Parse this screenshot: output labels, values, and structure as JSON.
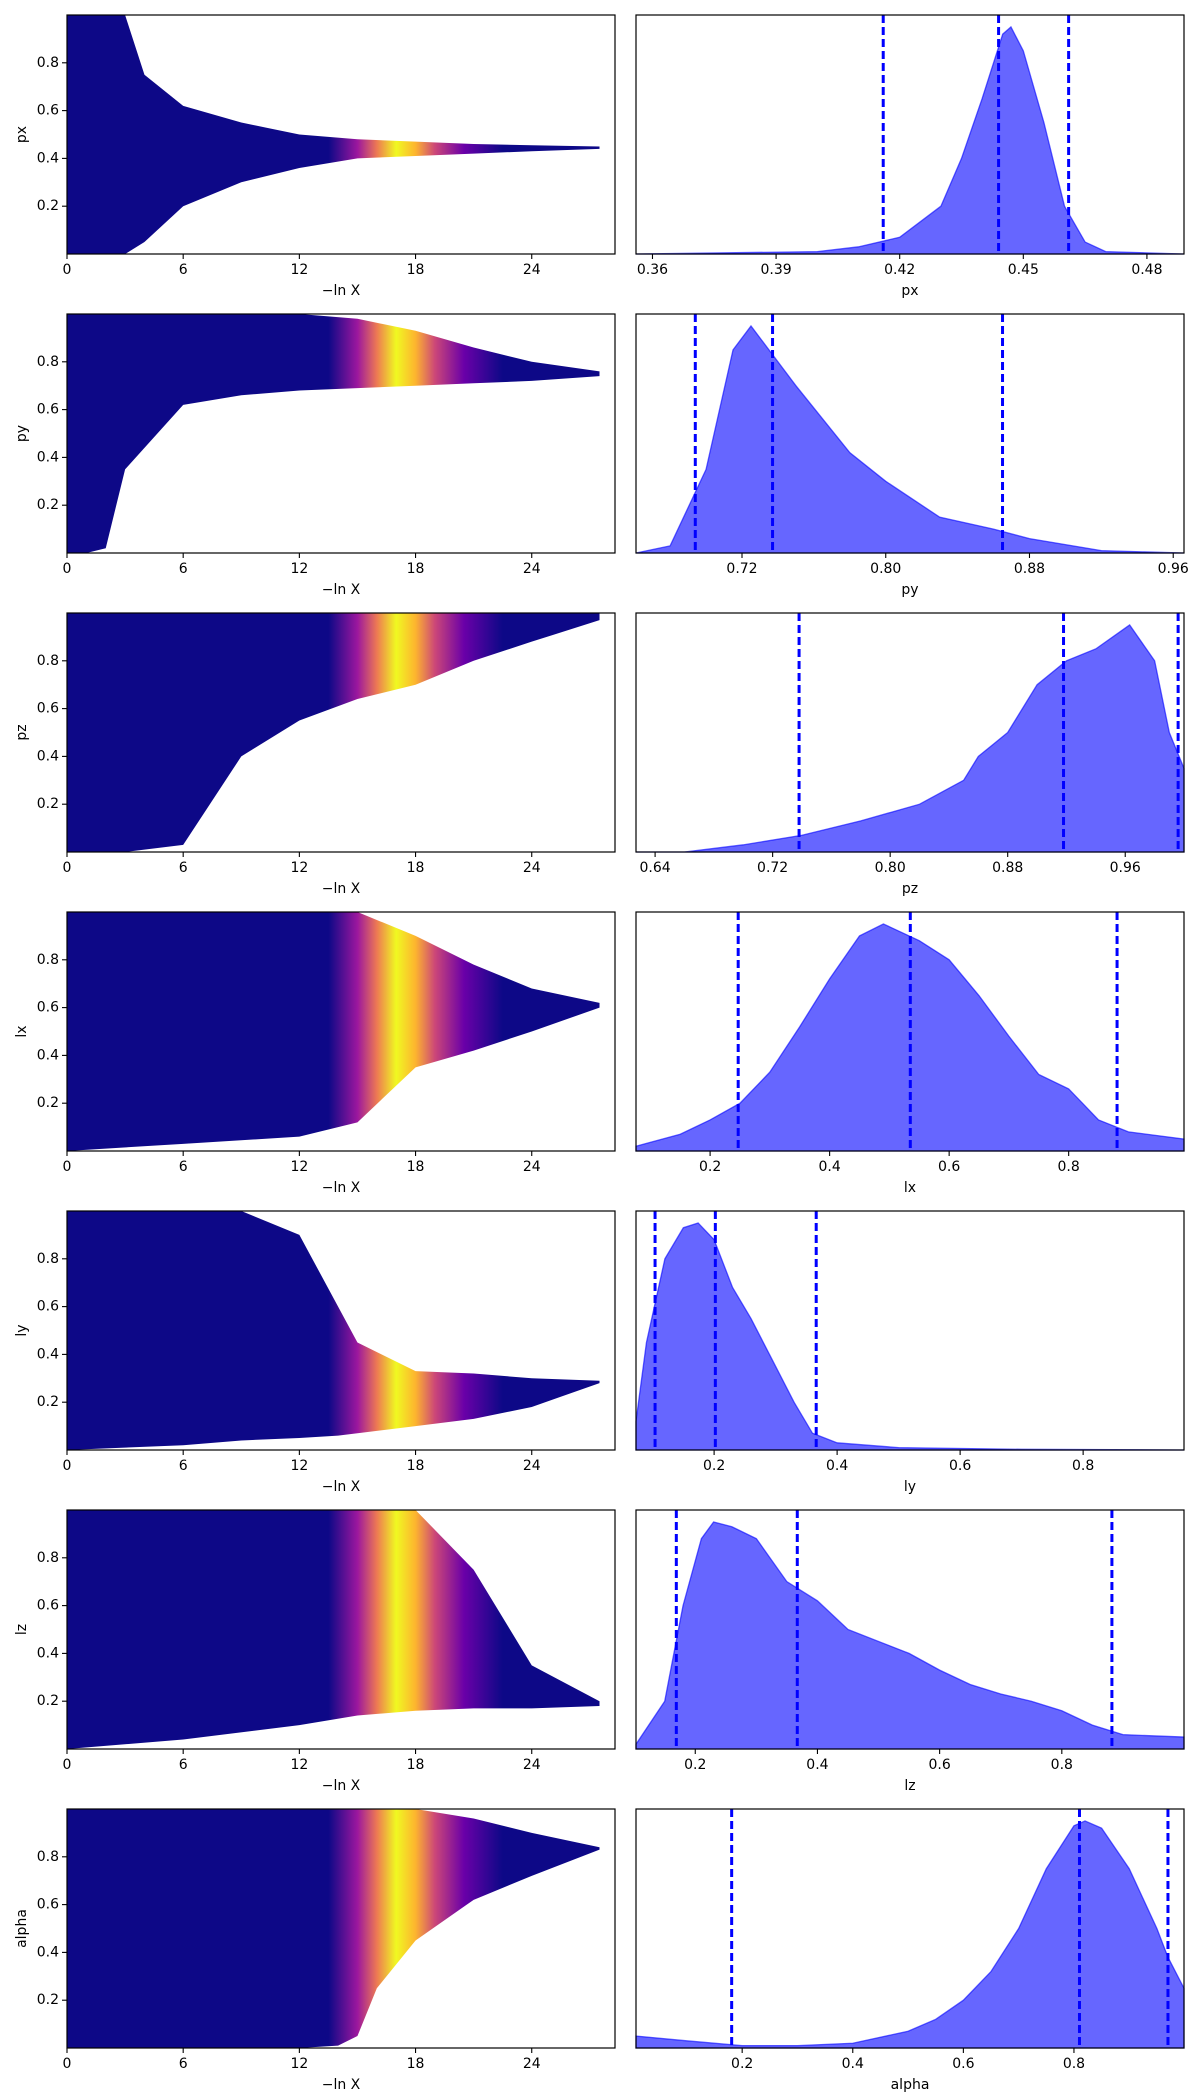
{
  "chart_data": [
    {
      "type": "band",
      "ylabel": "px",
      "xlabel": "−ln X",
      "xlim": [
        0,
        28.3
      ],
      "ylim": [
        0,
        1
      ],
      "xticks": [
        0,
        6,
        12,
        18,
        24
      ],
      "yticks": [
        0.2,
        0.4,
        0.6,
        0.8
      ],
      "x": [
        0,
        3,
        4,
        6,
        9,
        12,
        15,
        18,
        21,
        24,
        27.5
      ],
      "low": [
        0,
        0,
        0.05,
        0.2,
        0.3,
        0.36,
        0.4,
        0.41,
        0.42,
        0.43,
        0.44
      ],
      "high": [
        1,
        1,
        0.75,
        0.62,
        0.55,
        0.5,
        0.48,
        0.47,
        0.46,
        0.455,
        0.45
      ],
      "color_stops": [
        {
          "x": 13.5,
          "color": "#0d0887"
        },
        {
          "x": 15,
          "color": "#9c179e"
        },
        {
          "x": 16,
          "color": "#ed7953"
        },
        {
          "x": 17,
          "color": "#f0f921"
        },
        {
          "x": 18,
          "color": "#fdb42f"
        },
        {
          "x": 19,
          "color": "#cc4778"
        },
        {
          "x": 20.5,
          "color": "#6a00a8"
        },
        {
          "x": 22.5,
          "color": "#0d0887"
        }
      ]
    },
    {
      "type": "kde",
      "xlabel": "px",
      "xlim": [
        0.356,
        0.489
      ],
      "ylim": [
        0,
        1
      ],
      "xticks": [
        0.36,
        0.39,
        0.42,
        0.45,
        0.48
      ],
      "color": "#0000ff",
      "vlines": [
        0.416,
        0.444,
        0.461
      ],
      "x": [
        0.356,
        0.4,
        0.41,
        0.42,
        0.43,
        0.435,
        0.44,
        0.445,
        0.447,
        0.45,
        0.455,
        0.46,
        0.465,
        0.47,
        0.489
      ],
      "values": [
        0,
        0.01,
        0.03,
        0.07,
        0.2,
        0.4,
        0.65,
        0.92,
        0.95,
        0.85,
        0.55,
        0.2,
        0.05,
        0.01,
        0
      ]
    },
    {
      "type": "band",
      "ylabel": "py",
      "xlabel": "−ln X",
      "xlim": [
        0,
        28.3
      ],
      "ylim": [
        0,
        1
      ],
      "xticks": [
        0,
        6,
        12,
        18,
        24
      ],
      "yticks": [
        0.2,
        0.4,
        0.6,
        0.8
      ],
      "x": [
        0,
        1,
        2,
        3,
        6,
        9,
        12,
        15,
        18,
        21,
        24,
        27.5
      ],
      "low": [
        0,
        0,
        0.02,
        0.35,
        0.62,
        0.66,
        0.68,
        0.69,
        0.7,
        0.71,
        0.72,
        0.74
      ],
      "high": [
        1,
        1,
        1,
        1,
        1,
        1,
        1,
        0.98,
        0.93,
        0.86,
        0.8,
        0.76
      ],
      "color_stops": [
        {
          "x": 13.5,
          "color": "#0d0887"
        },
        {
          "x": 15,
          "color": "#9c179e"
        },
        {
          "x": 16,
          "color": "#ed7953"
        },
        {
          "x": 17,
          "color": "#f0f921"
        },
        {
          "x": 18,
          "color": "#fdb42f"
        },
        {
          "x": 19,
          "color": "#cc4778"
        },
        {
          "x": 20.5,
          "color": "#6a00a8"
        },
        {
          "x": 22.5,
          "color": "#0d0887"
        }
      ]
    },
    {
      "type": "kde",
      "xlabel": "py",
      "xlim": [
        0.661,
        0.966
      ],
      "ylim": [
        0,
        1
      ],
      "xticks": [
        0.72,
        {
          "value": 0.8,
          "label": "0.80"
        },
        0.88,
        0.96
      ],
      "color": "#0000ff",
      "vlines": [
        0.694,
        0.737,
        0.865
      ],
      "x": [
        0.661,
        0.68,
        0.7,
        0.715,
        0.725,
        0.75,
        0.78,
        0.8,
        0.83,
        0.86,
        0.88,
        0.92,
        0.966
      ],
      "values": [
        0,
        0.03,
        0.35,
        0.85,
        0.95,
        0.7,
        0.42,
        0.3,
        0.15,
        0.1,
        0.06,
        0.01,
        0
      ]
    },
    {
      "type": "band",
      "ylabel": "pz",
      "xlabel": "−ln X",
      "xlim": [
        0,
        28.3
      ],
      "ylim": [
        0,
        1
      ],
      "xticks": [
        0,
        6,
        12,
        18,
        24
      ],
      "yticks": [
        0.2,
        0.4,
        0.6,
        0.8
      ],
      "x": [
        0,
        3,
        6,
        9,
        12,
        15,
        18,
        21,
        24,
        27.5
      ],
      "low": [
        0,
        0,
        0.03,
        0.4,
        0.55,
        0.64,
        0.7,
        0.8,
        0.88,
        0.97
      ],
      "high": [
        1,
        1,
        1,
        1,
        1,
        1,
        1,
        1,
        1,
        1
      ],
      "color_stops": [
        {
          "x": 13.5,
          "color": "#0d0887"
        },
        {
          "x": 15,
          "color": "#9c179e"
        },
        {
          "x": 16,
          "color": "#ed7953"
        },
        {
          "x": 17,
          "color": "#f0f921"
        },
        {
          "x": 18,
          "color": "#fdb42f"
        },
        {
          "x": 19,
          "color": "#cc4778"
        },
        {
          "x": 20.5,
          "color": "#6a00a8"
        },
        {
          "x": 22.5,
          "color": "#0d0887"
        }
      ]
    },
    {
      "type": "kde",
      "xlabel": "pz",
      "xlim": [
        0.627,
        1.0
      ],
      "ylim": [
        0,
        1
      ],
      "xticks": [
        0.64,
        0.72,
        {
          "value": 0.8,
          "label": "0.80"
        },
        0.88,
        0.96
      ],
      "color": "#0000ff",
      "vlines": [
        0.738,
        0.918,
        0.996
      ],
      "x": [
        0.627,
        0.66,
        0.7,
        0.74,
        0.78,
        0.82,
        0.85,
        0.86,
        0.87,
        0.88,
        0.9,
        0.92,
        0.94,
        0.963,
        0.98,
        0.99,
        1.0
      ],
      "values": [
        0,
        0,
        0.03,
        0.07,
        0.13,
        0.2,
        0.3,
        0.4,
        0.45,
        0.5,
        0.7,
        0.8,
        0.85,
        0.95,
        0.8,
        0.5,
        0.35
      ]
    },
    {
      "type": "band",
      "ylabel": "lx",
      "xlabel": "−ln X",
      "xlim": [
        0,
        28.3
      ],
      "ylim": [
        0,
        1
      ],
      "xticks": [
        0,
        6,
        12,
        18,
        24
      ],
      "yticks": [
        0.2,
        0.4,
        0.6,
        0.8
      ],
      "x": [
        0,
        6,
        12,
        15,
        18,
        21,
        24,
        27.5
      ],
      "low": [
        0,
        0.03,
        0.06,
        0.12,
        0.35,
        0.42,
        0.5,
        0.6
      ],
      "high": [
        1,
        1,
        1,
        1,
        0.9,
        0.78,
        0.68,
        0.62
      ],
      "color_stops": [
        {
          "x": 13.5,
          "color": "#0d0887"
        },
        {
          "x": 15,
          "color": "#9c179e"
        },
        {
          "x": 16,
          "color": "#ed7953"
        },
        {
          "x": 17,
          "color": "#f0f921"
        },
        {
          "x": 18,
          "color": "#fdb42f"
        },
        {
          "x": 19,
          "color": "#cc4778"
        },
        {
          "x": 20.5,
          "color": "#6a00a8"
        },
        {
          "x": 22.5,
          "color": "#0d0887"
        }
      ]
    },
    {
      "type": "kde",
      "xlabel": "lx",
      "xlim": [
        0.076,
        0.993
      ],
      "ylim": [
        0,
        1
      ],
      "xticks": [
        0.2,
        0.4,
        0.6,
        0.8
      ],
      "color": "#0000ff",
      "vlines": [
        0.247,
        0.535,
        0.881
      ],
      "x": [
        0.076,
        0.15,
        0.2,
        0.25,
        0.3,
        0.35,
        0.4,
        0.45,
        0.49,
        0.55,
        0.6,
        0.65,
        0.7,
        0.75,
        0.8,
        0.85,
        0.9,
        0.993
      ],
      "values": [
        0.02,
        0.07,
        0.13,
        0.2,
        0.33,
        0.52,
        0.72,
        0.9,
        0.95,
        0.88,
        0.8,
        0.65,
        0.48,
        0.32,
        0.26,
        0.13,
        0.08,
        0.05
      ]
    },
    {
      "type": "band",
      "ylabel": "ly",
      "xlabel": "−ln X",
      "xlim": [
        0,
        28.3
      ],
      "ylim": [
        0,
        1
      ],
      "xticks": [
        0,
        6,
        12,
        18,
        24
      ],
      "yticks": [
        0.2,
        0.4,
        0.6,
        0.8
      ],
      "x": [
        0,
        6,
        9,
        12,
        14,
        15,
        18,
        21,
        24,
        27.5
      ],
      "low": [
        0,
        0.02,
        0.04,
        0.05,
        0.06,
        0.07,
        0.1,
        0.13,
        0.18,
        0.28
      ],
      "high": [
        1,
        1,
        1,
        0.9,
        0.6,
        0.45,
        0.33,
        0.32,
        0.3,
        0.29
      ],
      "color_stops": [
        {
          "x": 13.5,
          "color": "#0d0887"
        },
        {
          "x": 15,
          "color": "#9c179e"
        },
        {
          "x": 16,
          "color": "#ed7953"
        },
        {
          "x": 17,
          "color": "#f0f921"
        },
        {
          "x": 18,
          "color": "#fdb42f"
        },
        {
          "x": 19,
          "color": "#cc4778"
        },
        {
          "x": 20.5,
          "color": "#6a00a8"
        },
        {
          "x": 22.5,
          "color": "#0d0887"
        }
      ]
    },
    {
      "type": "kde",
      "xlabel": "ly",
      "xlim": [
        0.073,
        0.964
      ],
      "ylim": [
        0,
        1
      ],
      "xticks": [
        0.2,
        0.4,
        0.6,
        0.8
      ],
      "color": "#0000ff",
      "vlines": [
        0.104,
        0.202,
        0.366
      ],
      "x": [
        0.073,
        0.09,
        0.12,
        0.15,
        0.174,
        0.2,
        0.23,
        0.26,
        0.3,
        0.33,
        0.36,
        0.4,
        0.5,
        0.7,
        0.964
      ],
      "values": [
        0.12,
        0.45,
        0.8,
        0.93,
        0.95,
        0.88,
        0.68,
        0.55,
        0.35,
        0.2,
        0.07,
        0.03,
        0.01,
        0.003,
        0
      ]
    },
    {
      "type": "band",
      "ylabel": "lz",
      "xlabel": "−ln X",
      "xlim": [
        0,
        28.3
      ],
      "ylim": [
        0,
        1
      ],
      "xticks": [
        0,
        6,
        12,
        18,
        24
      ],
      "yticks": [
        0.2,
        0.4,
        0.6,
        0.8
      ],
      "x": [
        0,
        6,
        12,
        15,
        18,
        21,
        24,
        27.5
      ],
      "low": [
        0,
        0.04,
        0.1,
        0.14,
        0.16,
        0.17,
        0.17,
        0.18
      ],
      "high": [
        1,
        1,
        1,
        1,
        1,
        0.75,
        0.35,
        0.2
      ],
      "color_stops": [
        {
          "x": 13.5,
          "color": "#0d0887"
        },
        {
          "x": 15,
          "color": "#9c179e"
        },
        {
          "x": 16,
          "color": "#ed7953"
        },
        {
          "x": 17,
          "color": "#f0f921"
        },
        {
          "x": 18,
          "color": "#fdb42f"
        },
        {
          "x": 19,
          "color": "#cc4778"
        },
        {
          "x": 20.5,
          "color": "#6a00a8"
        },
        {
          "x": 22.5,
          "color": "#0d0887"
        }
      ]
    },
    {
      "type": "kde",
      "xlabel": "lz",
      "xlim": [
        0.103,
        1.0
      ],
      "ylim": [
        0,
        1
      ],
      "xticks": [
        0.2,
        0.4,
        0.6,
        0.8
      ],
      "color": "#0000ff",
      "vlines": [
        0.169,
        0.367,
        0.882
      ],
      "x": [
        0.103,
        0.15,
        0.18,
        0.21,
        0.23,
        0.26,
        0.3,
        0.35,
        0.4,
        0.45,
        0.5,
        0.55,
        0.6,
        0.65,
        0.7,
        0.75,
        0.8,
        0.85,
        0.9,
        1.0
      ],
      "values": [
        0.02,
        0.2,
        0.6,
        0.88,
        0.95,
        0.93,
        0.88,
        0.7,
        0.62,
        0.5,
        0.45,
        0.4,
        0.33,
        0.27,
        0.23,
        0.2,
        0.16,
        0.1,
        0.06,
        0.05
      ]
    },
    {
      "type": "band",
      "ylabel": "alpha",
      "xlabel": "−ln X",
      "xlim": [
        0,
        28.3
      ],
      "ylim": [
        0,
        1
      ],
      "xticks": [
        0,
        6,
        12,
        18,
        24
      ],
      "yticks": [
        0.2,
        0.4,
        0.6,
        0.8
      ],
      "x": [
        0,
        12,
        14,
        15,
        16,
        18,
        21,
        24,
        27.5
      ],
      "low": [
        0,
        0,
        0.01,
        0.05,
        0.25,
        0.45,
        0.62,
        0.72,
        0.83
      ],
      "high": [
        1,
        1,
        1,
        1,
        1,
        1,
        0.96,
        0.9,
        0.84
      ],
      "color_stops": [
        {
          "x": 13.5,
          "color": "#0d0887"
        },
        {
          "x": 15,
          "color": "#9c179e"
        },
        {
          "x": 16,
          "color": "#ed7953"
        },
        {
          "x": 17,
          "color": "#f0f921"
        },
        {
          "x": 18,
          "color": "#fdb42f"
        },
        {
          "x": 19,
          "color": "#cc4778"
        },
        {
          "x": 20.5,
          "color": "#6a00a8"
        },
        {
          "x": 22.5,
          "color": "#0d0887"
        }
      ]
    },
    {
      "type": "kde",
      "xlabel": "alpha",
      "xlim": [
        0.008,
        0.999
      ],
      "ylim": [
        0,
        1
      ],
      "xticks": [
        0.2,
        0.4,
        0.6,
        0.8
      ],
      "color": "#0000ff",
      "vlines": [
        0.181,
        0.81,
        0.97
      ],
      "x": [
        0.008,
        0.1,
        0.2,
        0.3,
        0.4,
        0.5,
        0.55,
        0.6,
        0.65,
        0.7,
        0.75,
        0.8,
        0.82,
        0.85,
        0.9,
        0.95,
        0.97,
        0.999
      ],
      "values": [
        0.05,
        0.03,
        0.01,
        0.01,
        0.02,
        0.07,
        0.12,
        0.2,
        0.32,
        0.5,
        0.75,
        0.93,
        0.95,
        0.92,
        0.75,
        0.5,
        0.38,
        0.25
      ]
    }
  ]
}
